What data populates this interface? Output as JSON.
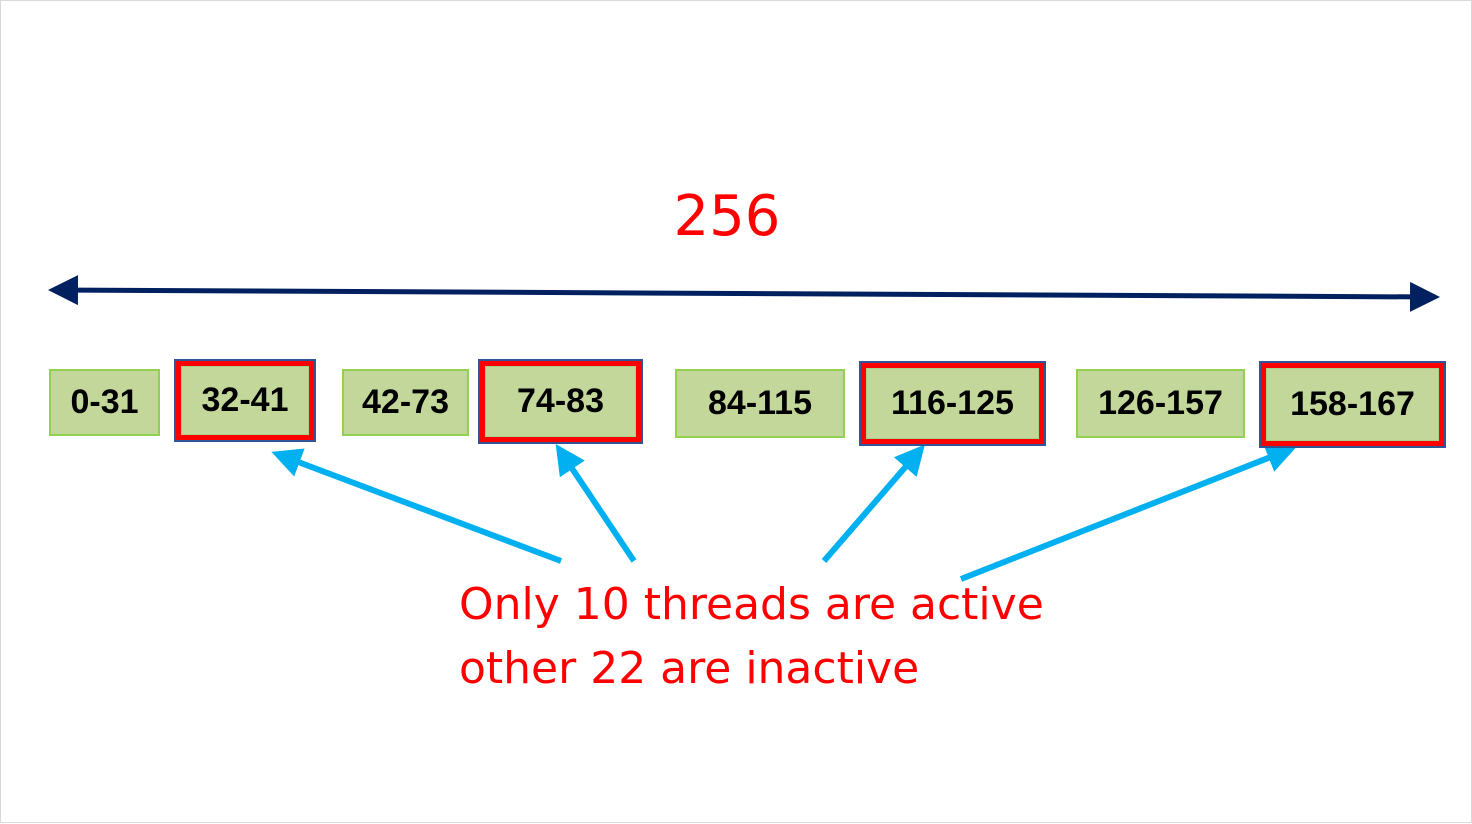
{
  "diagram": {
    "total_label": "256",
    "blocks": [
      {
        "label": "0-31",
        "active": false
      },
      {
        "label": "32-41",
        "active": true
      },
      {
        "label": "42-73",
        "active": false
      },
      {
        "label": "74-83",
        "active": true
      },
      {
        "label": "84-115",
        "active": false
      },
      {
        "label": "116-125",
        "active": true
      },
      {
        "label": "126-157",
        "active": false
      },
      {
        "label": "158-167",
        "active": true
      }
    ],
    "caption": {
      "line1": "Only 10 threads are active",
      "line2": "other 22 are inactive"
    },
    "colors": {
      "label_red": "#ff0000",
      "span_arrow": "#002060",
      "pointer_arrow": "#00b0f0",
      "block_fill": "#c4d79b",
      "block_border": "#92d050",
      "highlight_border": "#ff0000",
      "highlight_outline": "#2f5597"
    }
  }
}
